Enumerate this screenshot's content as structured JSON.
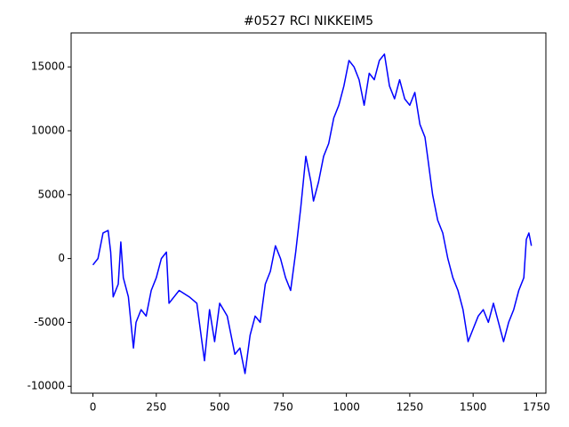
{
  "chart_data": {
    "type": "line",
    "title": "#0527 RCI NIKKEIM5",
    "series": [
      {
        "color": "#0000ff",
        "x": [
          0,
          20,
          40,
          60,
          70,
          80,
          100,
          110,
          120,
          140,
          160,
          170,
          190,
          210,
          230,
          250,
          270,
          290,
          300,
          320,
          340,
          380,
          410,
          430,
          440,
          460,
          480,
          500,
          530,
          560,
          580,
          600,
          620,
          640,
          660,
          680,
          700,
          720,
          740,
          760,
          780,
          800,
          820,
          840,
          860,
          870,
          890,
          910,
          930,
          950,
          970,
          990,
          1010,
          1030,
          1050,
          1070,
          1090,
          1110,
          1130,
          1150,
          1170,
          1190,
          1210,
          1230,
          1250,
          1270,
          1290,
          1310,
          1320,
          1340,
          1360,
          1380,
          1400,
          1420,
          1440,
          1460,
          1480,
          1500,
          1520,
          1540,
          1560,
          1580,
          1600,
          1620,
          1640,
          1660,
          1680,
          1700,
          1710,
          1720,
          1730
        ],
        "values": [
          -500,
          0,
          2000,
          2200,
          500,
          -3000,
          -2000,
          1300,
          -1500,
          -3000,
          -7000,
          -5000,
          -4000,
          -4500,
          -2500,
          -1500,
          0,
          500,
          -3500,
          -3000,
          -2500,
          -3000,
          -3500,
          -6500,
          -8000,
          -4000,
          -6500,
          -3500,
          -4500,
          -7500,
          -7000,
          -9000,
          -6000,
          -4500,
          -5000,
          -2000,
          -1000,
          1000,
          0,
          -1500,
          -2500,
          500,
          4000,
          8000,
          6000,
          4500,
          6000,
          8000,
          9000,
          11000,
          12000,
          13500,
          15500,
          15000,
          14000,
          12000,
          14500,
          14000,
          15500,
          16000,
          13500,
          12500,
          14000,
          12500,
          12000,
          13000,
          10500,
          9500,
          8000,
          5000,
          3000,
          2000,
          0,
          -1500,
          -2500,
          -4000,
          -6500,
          -5500,
          -4500,
          -4000,
          -5000,
          -3500,
          -5000,
          -6500,
          -5000,
          -4000,
          -2500,
          -1500,
          1500,
          2000,
          1000
        ]
      }
    ],
    "xlim": [
      -86,
      1787
    ],
    "ylim": [
      -10540,
      17660
    ],
    "xticks": [
      0,
      250,
      500,
      750,
      1000,
      1250,
      1500,
      1750
    ],
    "yticks": [
      -10000,
      -5000,
      0,
      5000,
      10000,
      15000
    ]
  }
}
